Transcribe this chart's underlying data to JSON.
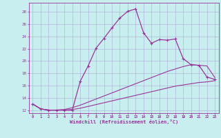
{
  "xlabel": "Windchill (Refroidissement éolien,°C)",
  "bg_color": "#c8eef0",
  "grid_color": "#b0b8d8",
  "line_color": "#993399",
  "xlim": [
    -0.5,
    23.5
  ],
  "ylim": [
    11.5,
    29.5
  ],
  "xticks": [
    0,
    1,
    2,
    3,
    4,
    5,
    6,
    7,
    8,
    9,
    10,
    11,
    12,
    13,
    14,
    15,
    16,
    17,
    18,
    19,
    20,
    21,
    22,
    23
  ],
  "yticks": [
    12,
    14,
    16,
    18,
    20,
    22,
    24,
    26,
    28
  ],
  "curve1_x": [
    0,
    1,
    2,
    3,
    4,
    5,
    6,
    7,
    8,
    9,
    10,
    11,
    12,
    13,
    14,
    15,
    16,
    17,
    18,
    19,
    20,
    21,
    22,
    23
  ],
  "curve1_y": [
    13.0,
    12.2,
    12.0,
    12.0,
    12.0,
    12.0,
    16.7,
    19.2,
    22.1,
    23.7,
    25.4,
    27.0,
    28.1,
    28.5,
    24.6,
    22.9,
    23.5,
    23.4,
    23.6,
    20.4,
    19.4,
    19.3,
    17.4,
    17.0
  ],
  "curve2_x": [
    0,
    1,
    2,
    3,
    4,
    5,
    6,
    7,
    8,
    9,
    10,
    11,
    12,
    13,
    14,
    15,
    16,
    17,
    18,
    19,
    20,
    21,
    22,
    23
  ],
  "curve2_y": [
    13.0,
    12.2,
    12.0,
    12.0,
    12.0,
    12.1,
    12.3,
    12.6,
    12.9,
    13.2,
    13.5,
    13.8,
    14.1,
    14.4,
    14.7,
    15.0,
    15.3,
    15.6,
    15.9,
    16.1,
    16.3,
    16.5,
    16.6,
    16.8
  ],
  "curve3_x": [
    0,
    1,
    2,
    3,
    4,
    5,
    6,
    7,
    8,
    9,
    10,
    11,
    12,
    13,
    14,
    15,
    16,
    17,
    18,
    19,
    20,
    21,
    22,
    23
  ],
  "curve3_y": [
    13.0,
    12.2,
    12.0,
    12.0,
    12.1,
    12.4,
    12.8,
    13.3,
    13.8,
    14.3,
    14.8,
    15.3,
    15.8,
    16.3,
    16.8,
    17.3,
    17.8,
    18.3,
    18.7,
    19.1,
    19.4,
    19.3,
    19.2,
    17.3
  ]
}
